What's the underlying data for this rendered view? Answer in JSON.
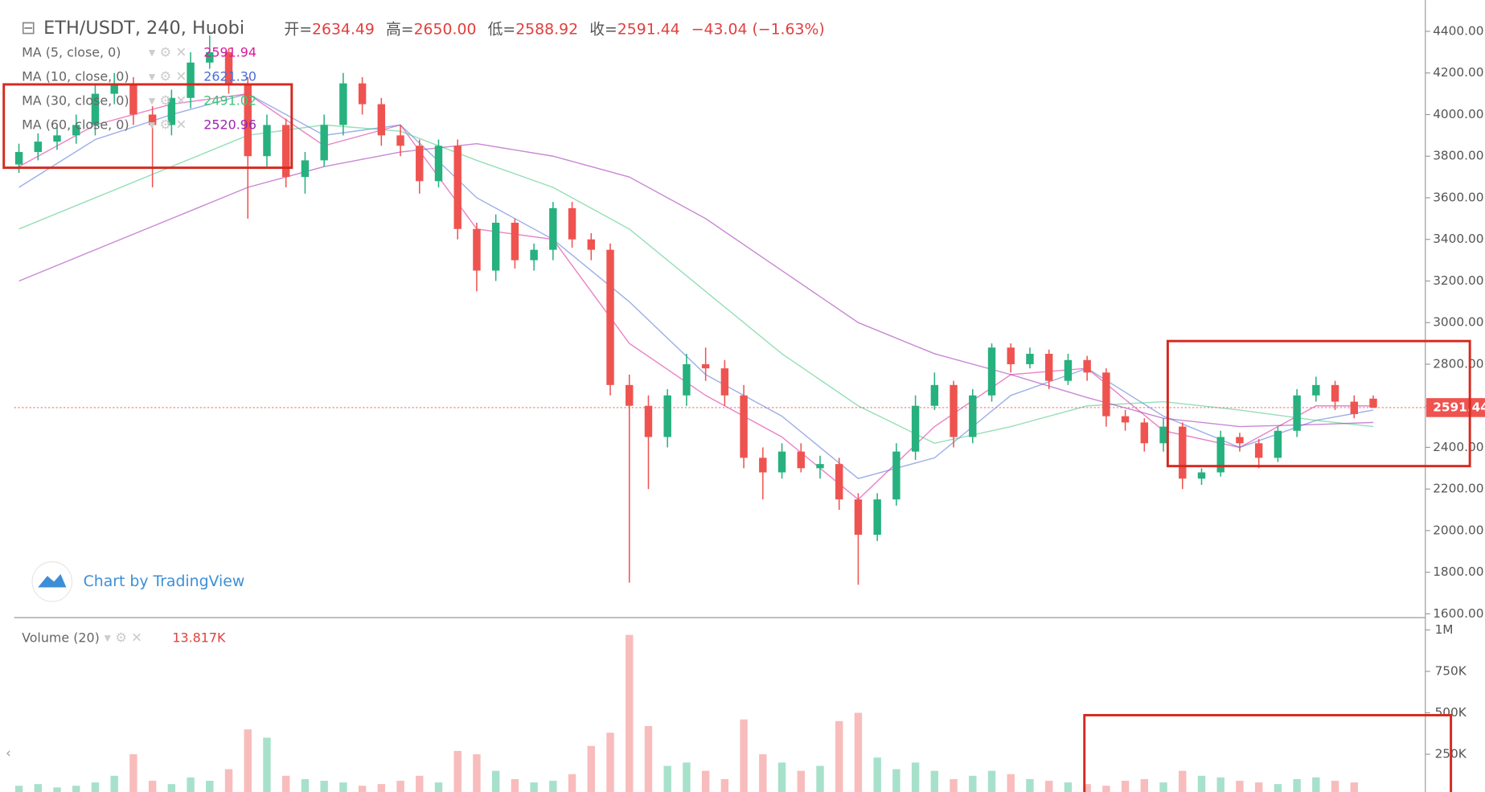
{
  "header": {
    "title": "ETH/USDT, 240, Huobi",
    "items": [
      {
        "label": "开=",
        "value": "2634.49"
      },
      {
        "label": "高=",
        "value": "2650.00"
      },
      {
        "label": "低=",
        "value": "2588.92"
      },
      {
        "label": "收=",
        "value": "2591.44"
      }
    ],
    "change": "−43.04 (−1.63%)",
    "watermark": "Chart by TradingView"
  },
  "chart_data": {
    "type": "candlestick",
    "up_color": "#26b17f",
    "down_color": "#ef5350",
    "open": [
      3760,
      3820,
      3870,
      3900,
      3950,
      4100,
      4150,
      4000,
      3950,
      4080,
      4250,
      4300,
      4150,
      3800,
      3950,
      3700,
      3780,
      3950,
      4150,
      4050,
      3900,
      3850,
      3680,
      3850,
      3450,
      3250,
      3480,
      3300,
      3350,
      3550,
      3400,
      3350,
      2700,
      2600,
      2450,
      2650,
      2800,
      2780,
      2650,
      2350,
      2280,
      2380,
      2300,
      2320,
      2150,
      1980,
      2150,
      2380,
      2600,
      2700,
      2450,
      2650,
      2880,
      2800,
      2850,
      2720,
      2820,
      2760,
      2550,
      2520,
      2420,
      2500,
      2250,
      2280,
      2450,
      2420,
      2350,
      2480,
      2650,
      2700,
      2620,
      2634.49
    ],
    "high": [
      3860,
      3910,
      3940,
      4000,
      4150,
      4200,
      4180,
      4040,
      4120,
      4300,
      4380,
      4320,
      4180,
      4000,
      3980,
      3820,
      4000,
      4200,
      4180,
      4080,
      3950,
      3880,
      3880,
      3880,
      3480,
      3520,
      3500,
      3380,
      3580,
      3580,
      3430,
      3380,
      2750,
      2650,
      2680,
      2850,
      2880,
      2820,
      2700,
      2400,
      2420,
      2420,
      2360,
      2350,
      2180,
      2180,
      2420,
      2650,
      2760,
      2720,
      2680,
      2900,
      2900,
      2880,
      2870,
      2850,
      2840,
      2780,
      2580,
      2540,
      2540,
      2520,
      2300,
      2480,
      2470,
      2440,
      2500,
      2680,
      2740,
      2720,
      2650,
      2650
    ],
    "low": [
      3720,
      3780,
      3830,
      3860,
      3900,
      4050,
      3950,
      3650,
      3900,
      4030,
      4220,
      4100,
      3500,
      3750,
      3650,
      3620,
      3750,
      3900,
      4000,
      3850,
      3800,
      3620,
      3650,
      3400,
      3150,
      3200,
      3260,
      3250,
      3300,
      3360,
      3300,
      2650,
      1750,
      2200,
      2400,
      2600,
      2720,
      2600,
      2300,
      2150,
      2250,
      2280,
      2250,
      2100,
      1740,
      1950,
      2120,
      2340,
      2580,
      2400,
      2420,
      2620,
      2760,
      2780,
      2680,
      2700,
      2720,
      2500,
      2480,
      2380,
      2380,
      2200,
      2220,
      2260,
      2380,
      2300,
      2330,
      2450,
      2620,
      2580,
      2540,
      2588.92
    ],
    "close": [
      3820,
      3870,
      3900,
      3950,
      4100,
      4150,
      4000,
      3950,
      4080,
      4250,
      4300,
      4150,
      3800,
      3950,
      3700,
      3780,
      3950,
      4150,
      4050,
      3900,
      3850,
      3680,
      3850,
      3450,
      3250,
      3480,
      3300,
      3350,
      3550,
      3400,
      3350,
      2700,
      2600,
      2450,
      2650,
      2800,
      2780,
      2650,
      2350,
      2280,
      2380,
      2300,
      2320,
      2150,
      1980,
      2150,
      2380,
      2600,
      2700,
      2450,
      2650,
      2880,
      2800,
      2850,
      2720,
      2820,
      2760,
      2550,
      2520,
      2420,
      2500,
      2250,
      2280,
      2450,
      2420,
      2350,
      2480,
      2650,
      2700,
      2620,
      2560,
      2591.44
    ],
    "ylim": [
      1600,
      4400
    ],
    "yticks": [
      {
        "value": 1600,
        "label": "1600.00"
      },
      {
        "value": 1800,
        "label": "1800.00"
      },
      {
        "value": 2000,
        "label": "2000.00"
      },
      {
        "value": 2200,
        "label": "2200.00"
      },
      {
        "value": 2400,
        "label": "2400.00"
      },
      {
        "value": 2600,
        "label": "2600.00"
      },
      {
        "value": 2800,
        "label": "2800.00"
      },
      {
        "value": 3000,
        "label": "3000.00"
      },
      {
        "value": 3200,
        "label": "3200.00"
      },
      {
        "value": 3400,
        "label": "3400.00"
      },
      {
        "value": 3600,
        "label": "3600.00"
      },
      {
        "value": 3800,
        "label": "3800.00"
      },
      {
        "value": 4000,
        "label": "4000.00"
      },
      {
        "value": 4200,
        "label": "4200.00"
      },
      {
        "value": 4400,
        "label": "4400.00"
      }
    ],
    "series": [
      {
        "name": "MA (5, close, 0)",
        "color": "#d81b9a",
        "value_label": "2591.94",
        "x": [
          0,
          4,
          8,
          12,
          16,
          20,
          24,
          28,
          32,
          36,
          40,
          44,
          48,
          52,
          56,
          60,
          64,
          68,
          71
        ],
        "values": [
          3750,
          3950,
          4050,
          4100,
          3850,
          3950,
          3450,
          3400,
          2900,
          2650,
          2450,
          2150,
          2500,
          2750,
          2780,
          2480,
          2400,
          2600,
          2600
        ]
      },
      {
        "name": "MA (10, close, 0)",
        "color": "#4a6fd6",
        "value_label": "2621.30",
        "x": [
          0,
          4,
          8,
          12,
          16,
          20,
          24,
          28,
          32,
          36,
          40,
          44,
          48,
          52,
          56,
          60,
          64,
          68,
          71
        ],
        "values": [
          3650,
          3880,
          4000,
          4100,
          3900,
          3950,
          3600,
          3400,
          3100,
          2750,
          2550,
          2250,
          2350,
          2650,
          2780,
          2550,
          2400,
          2530,
          2580
        ]
      },
      {
        "name": "MA (30, close, 0)",
        "color": "#3ec47a",
        "value_label": "2491.02",
        "x": [
          0,
          4,
          8,
          12,
          16,
          20,
          24,
          28,
          32,
          36,
          40,
          44,
          48,
          52,
          56,
          60,
          64,
          68,
          71
        ],
        "values": [
          3450,
          3600,
          3750,
          3900,
          3950,
          3920,
          3780,
          3650,
          3450,
          3150,
          2850,
          2600,
          2420,
          2500,
          2600,
          2620,
          2580,
          2530,
          2500
        ]
      },
      {
        "name": "MA (60, close, 0)",
        "color": "#9c27b0",
        "value_label": "2520.96",
        "x": [
          0,
          4,
          8,
          12,
          16,
          20,
          24,
          28,
          32,
          36,
          40,
          44,
          48,
          52,
          56,
          60,
          64,
          68,
          71
        ],
        "values": [
          3200,
          3350,
          3500,
          3650,
          3750,
          3820,
          3860,
          3800,
          3700,
          3500,
          3250,
          3000,
          2850,
          2750,
          2640,
          2540,
          2500,
          2510,
          2520
        ]
      }
    ],
    "volume": {
      "name": "Volume (20)",
      "value_label": "13.817K",
      "up_color": "#a7e1cb",
      "down_color": "#f8bcbc",
      "values": [
        60000,
        70000,
        50000,
        60000,
        80000,
        120000,
        250000,
        90000,
        70000,
        110000,
        90000,
        160000,
        400000,
        350000,
        120000,
        100000,
        90000,
        80000,
        60000,
        70000,
        90000,
        120000,
        80000,
        270000,
        250000,
        150000,
        100000,
        80000,
        90000,
        130000,
        300000,
        380000,
        970000,
        420000,
        180000,
        200000,
        150000,
        100000,
        460000,
        250000,
        200000,
        150000,
        180000,
        450000,
        500000,
        230000,
        160000,
        200000,
        150000,
        100000,
        120000,
        150000,
        130000,
        100000,
        90000,
        80000,
        70000,
        60000,
        90000,
        100000,
        80000,
        150000,
        120000,
        110000,
        90000,
        80000,
        70000,
        100000,
        110000,
        90000,
        80000,
        13817
      ],
      "ylim": [
        0,
        1000000
      ],
      "yticks": [
        {
          "value": 250000,
          "label": "250K"
        },
        {
          "value": 500000,
          "label": "500K"
        },
        {
          "value": 750000,
          "label": "750K"
        },
        {
          "value": 1000000,
          "label": "1M"
        }
      ]
    }
  }
}
